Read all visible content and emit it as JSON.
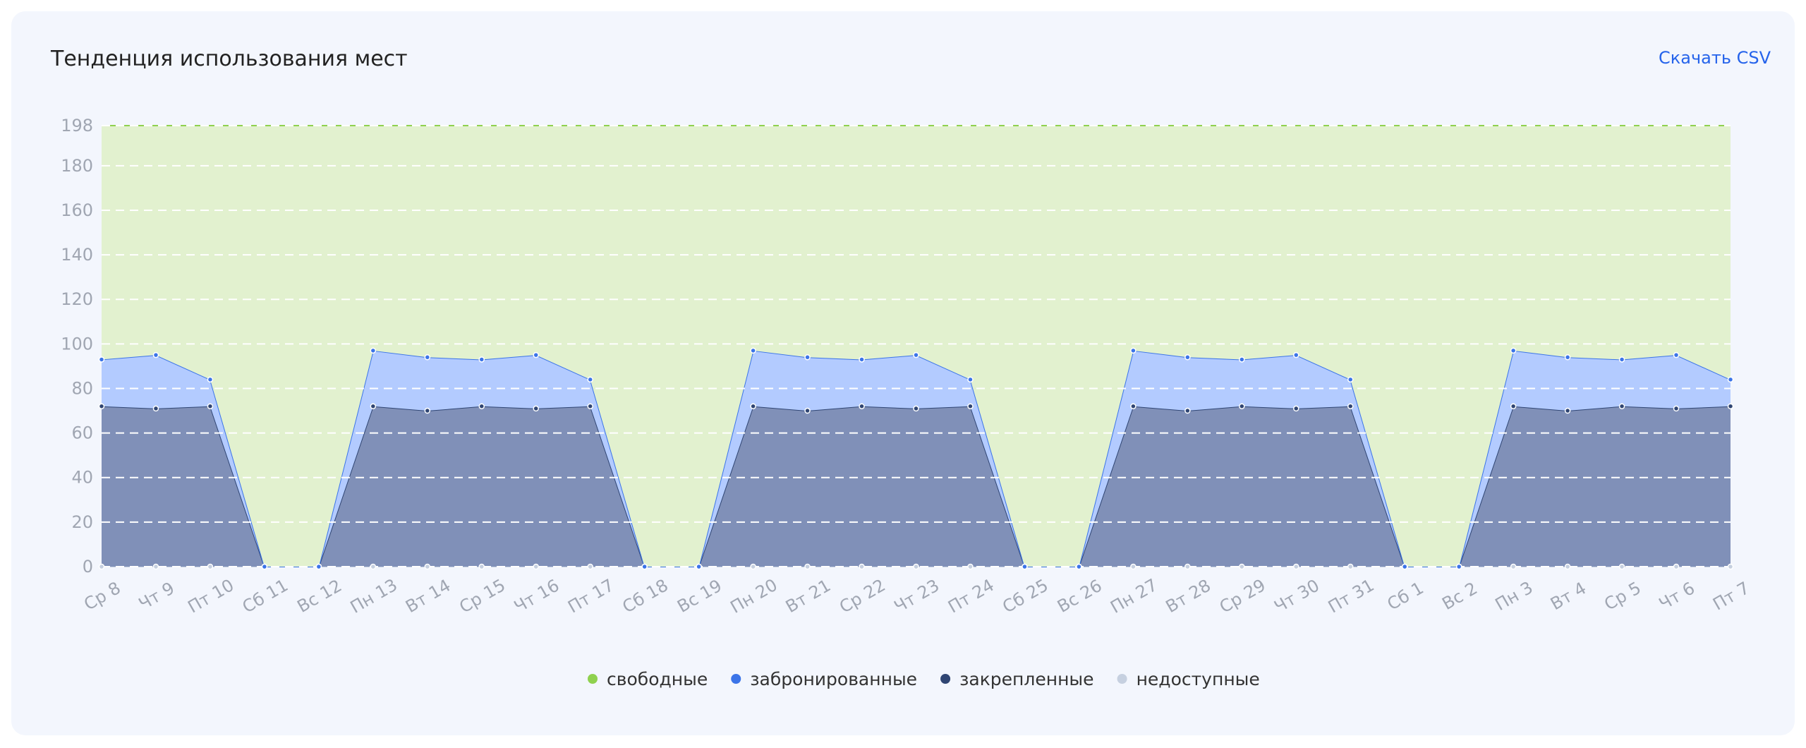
{
  "header": {
    "title": "Тенденция использования мест",
    "download": "Скачать CSV"
  },
  "chart_data": {
    "type": "stacked-area",
    "categories": [
      "Ср 8",
      "Чт 9",
      "Пт 10",
      "Сб 11",
      "Вс 12",
      "Пн 13",
      "Вт 14",
      "Ср 15",
      "Чт 16",
      "Пт 17",
      "Сб 18",
      "Вс 19",
      "Пн 20",
      "Вт 21",
      "Ср 22",
      "Чт 23",
      "Пт 24",
      "Сб 25",
      "Вс 26",
      "Пн 27",
      "Вт 28",
      "Ср 29",
      "Чт 30",
      "Пт 31",
      "Сб 1",
      "Вс 2",
      "Пн 3",
      "Вт 4",
      "Ср 5",
      "Чт 6",
      "Пт 7"
    ],
    "series": [
      {
        "name": "свободные",
        "color": "#8fd14f",
        "fill": "#e2f1cf",
        "values": [
          105,
          103,
          114,
          198,
          198,
          101,
          104,
          105,
          103,
          114,
          198,
          198,
          101,
          104,
          105,
          103,
          114,
          198,
          198,
          101,
          104,
          105,
          103,
          114,
          198,
          198,
          101,
          104,
          105,
          103,
          114
        ]
      },
      {
        "name": "забронированные",
        "color": "#3b74e8",
        "fill": "#b3cbff",
        "values": [
          21,
          24,
          12,
          0,
          0,
          25,
          24,
          21,
          24,
          12,
          0,
          0,
          25,
          24,
          21,
          24,
          12,
          0,
          0,
          25,
          24,
          21,
          24,
          12,
          0,
          0,
          25,
          24,
          21,
          24,
          12
        ]
      },
      {
        "name": "закрепленные",
        "color": "#2f4573",
        "fill": "#8090b8",
        "values": [
          72,
          71,
          72,
          0,
          0,
          72,
          70,
          72,
          71,
          72,
          0,
          0,
          72,
          70,
          72,
          71,
          72,
          0,
          0,
          72,
          70,
          72,
          71,
          72,
          0,
          0,
          72,
          70,
          72,
          71,
          72
        ]
      },
      {
        "name": "недоступные",
        "color": "#c6d0e0",
        "fill": "#c6d0e0",
        "values": [
          0,
          0,
          0,
          0,
          0,
          0,
          0,
          0,
          0,
          0,
          0,
          0,
          0,
          0,
          0,
          0,
          0,
          0,
          0,
          0,
          0,
          0,
          0,
          0,
          0,
          0,
          0,
          0,
          0,
          0,
          0
        ]
      }
    ],
    "ylim": [
      0,
      198
    ],
    "yticks": [
      0,
      20,
      40,
      60,
      80,
      100,
      120,
      140,
      160,
      180,
      198
    ],
    "grid": true
  }
}
